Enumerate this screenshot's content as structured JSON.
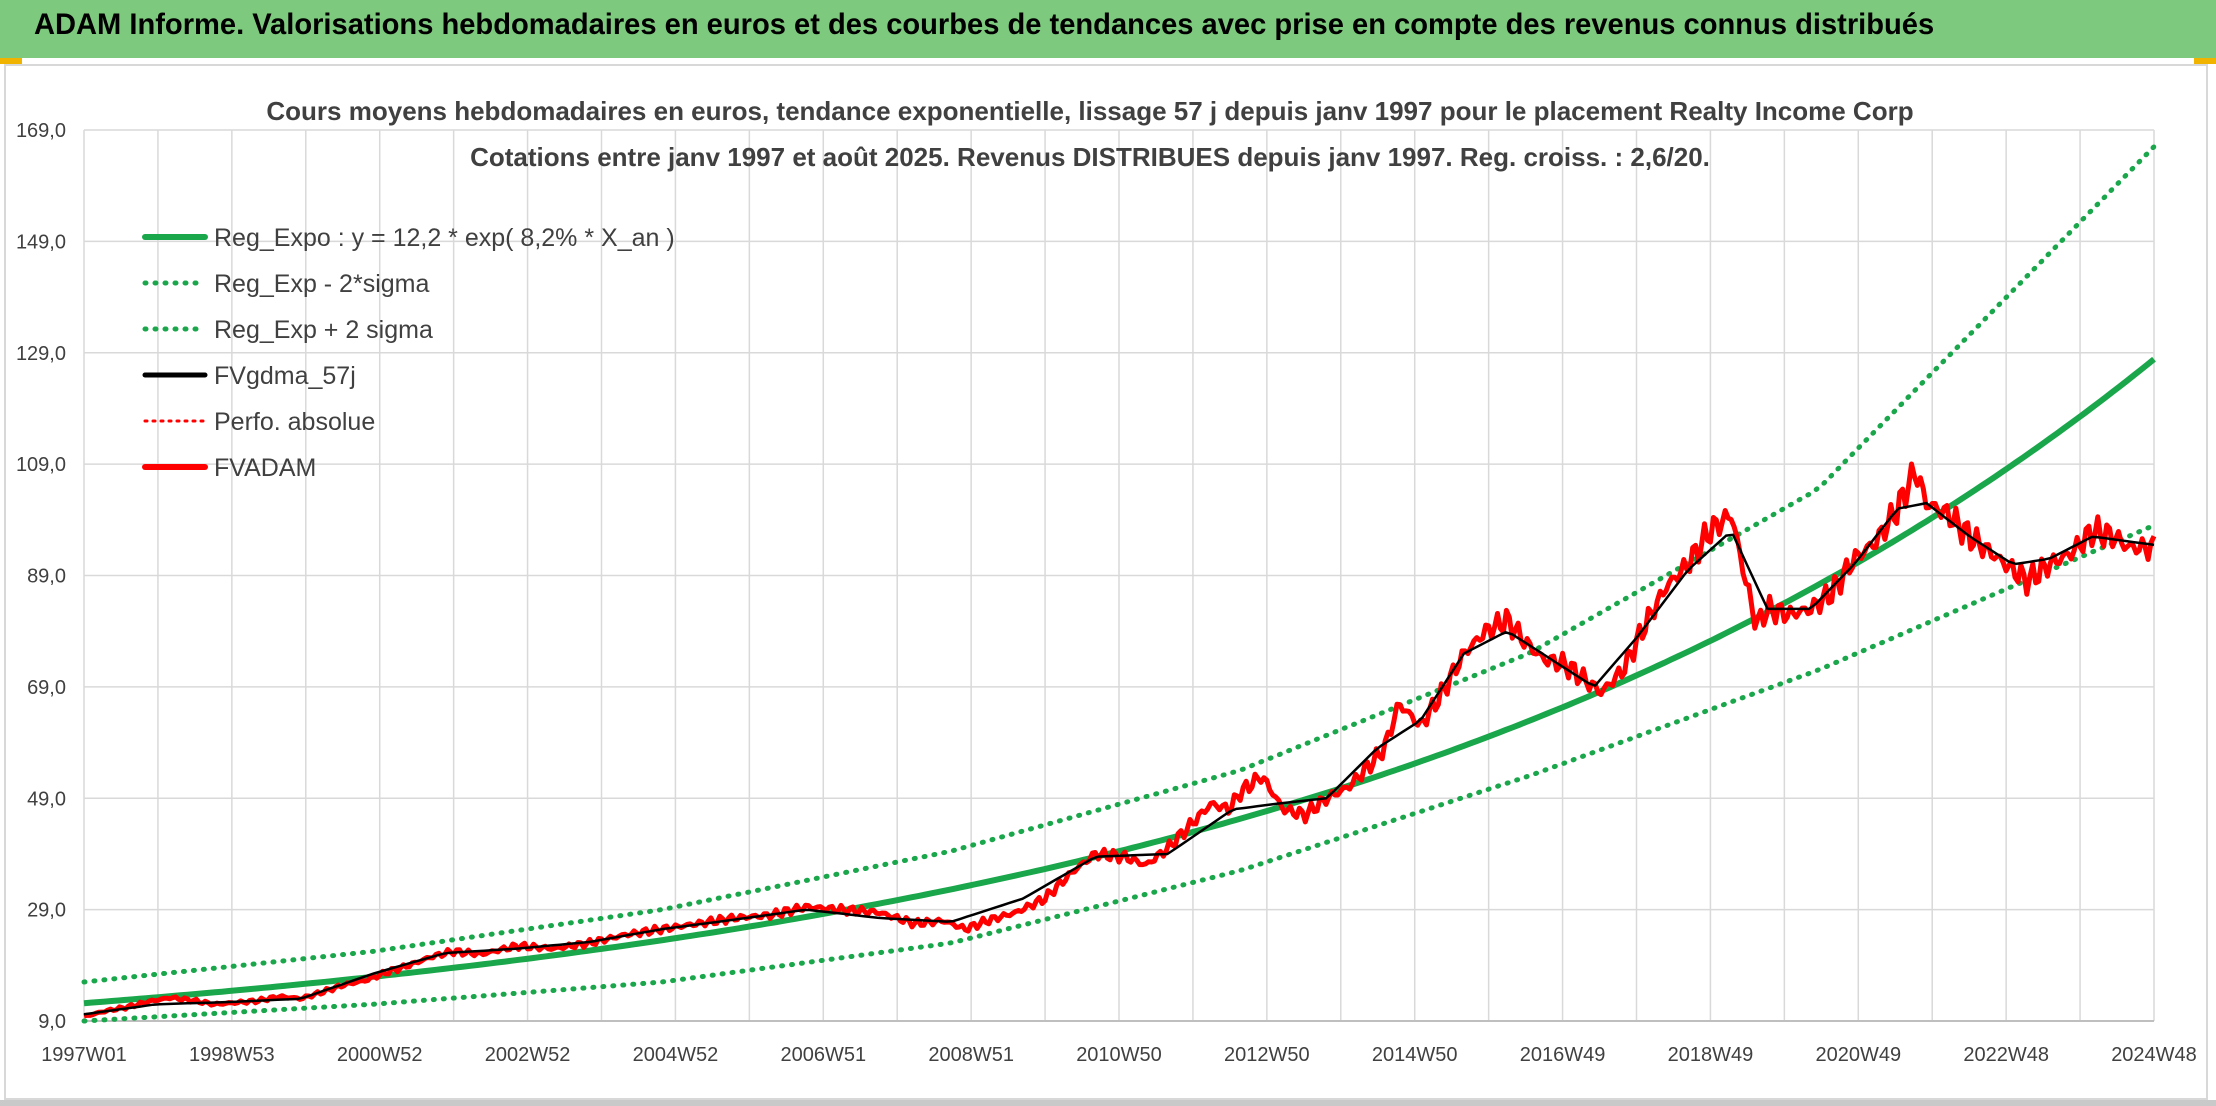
{
  "banner": {
    "title": "ADAM Informe. Valorisations hebdomadaires en euros et des courbes de tendances avec prise en compte des revenus connus distribués"
  },
  "colors": {
    "banner": "#7dc97d",
    "reg": "#1aa64b",
    "smooth": "#000000",
    "perf": "#ff0000",
    "fvadam": "#ff0000",
    "grid": "#d9d9d9"
  },
  "chart_data": {
    "type": "line",
    "title": "Cours moyens hebdomadaires en euros, tendance exponentielle, lissage 57 j depuis janv 1997 pour le placement Realty Income Corp",
    "subtitle": "Cotations entre janv 1997 et août 2025. Revenus DISTRIBUES depuis janv 1997. Reg. croiss. : 2,6/20.",
    "ylim": [
      9,
      169
    ],
    "y_ticks": [
      "169,0",
      "149,0",
      "129,0",
      "109,0",
      "89,0",
      "69,0",
      "49,0",
      "29,0",
      "9,0"
    ],
    "x_ticks": [
      "1997W01",
      "1998W53",
      "2000W52",
      "2002W52",
      "2004W52",
      "2006W51",
      "2008W51",
      "2010W50",
      "2012W50",
      "2014W50",
      "2016W49",
      "2018W49",
      "2020W49",
      "2022W48",
      "2024W48"
    ],
    "x_range": [
      1997.0,
      2025.65
    ],
    "grid": true,
    "legend_position": "top-left",
    "legend": [
      "Reg_Expo : y = 12,2 * exp( 8,2% *  X_an )",
      "Reg_Exp - 2*sigma",
      "Reg_Exp + 2 sigma",
      "FVgdma_57j",
      "Perfo. absolue",
      "FVADAM"
    ],
    "regression": {
      "a": 12.2,
      "rate": 0.082,
      "x0": 1997.0
    },
    "band_points": {
      "x": [
        1997.0,
        2001.0,
        2005.0,
        2009.0,
        2013.0,
        2017.0,
        2021.0,
        2025.65
      ],
      "upper": [
        16.0,
        21.5,
        29.0,
        39.5,
        54.0,
        75.0,
        104.5,
        166.0
      ],
      "lower": [
        9.0,
        12.0,
        16.0,
        23.0,
        36.0,
        53.0,
        72.0,
        98.0
      ]
    },
    "series": [
      {
        "name": "FVADAM",
        "x": [
          1997.0,
          1997.3,
          1997.6,
          1997.9,
          1998.2,
          1998.5,
          1998.8,
          1999.1,
          1999.4,
          1999.7,
          2000.0,
          2000.3,
          2000.6,
          2000.9,
          2001.2,
          2001.5,
          2001.8,
          2002.1,
          2002.5,
          2003.0,
          2003.5,
          2004.0,
          2004.5,
          2005.0,
          2005.5,
          2006.0,
          2006.5,
          2007.0,
          2007.5,
          2008.0,
          2008.5,
          2008.9,
          2009.2,
          2009.5,
          2009.9,
          2010.3,
          2010.7,
          2011.0,
          2011.4,
          2011.7,
          2012.0,
          2012.3,
          2012.6,
          2012.85,
          2013.0,
          2013.3,
          2013.6,
          2013.9,
          2014.2,
          2014.5,
          2014.8,
          2015.0,
          2015.2,
          2015.5,
          2015.8,
          2016.1,
          2016.4,
          2016.7,
          2016.95,
          2017.2,
          2017.5,
          2017.8,
          2018.0,
          2018.3,
          2018.6,
          2018.9,
          2019.2,
          2019.5,
          2019.8,
          2020.0,
          2020.15,
          2020.3,
          2020.6,
          2020.9,
          2021.2,
          2021.5,
          2021.8,
          2022.1,
          2022.35,
          2022.5,
          2022.8,
          2023.1,
          2023.4,
          2023.7,
          2023.9,
          2024.2,
          2024.5,
          2024.8,
          2025.1,
          2025.3,
          2025.65
        ],
        "values": [
          9.8,
          10.8,
          11.5,
          12.5,
          13.2,
          12.7,
          12.0,
          12.3,
          12.6,
          13.4,
          13.0,
          14.2,
          15.5,
          16.3,
          17.8,
          19.0,
          20.5,
          21.5,
          21.0,
          22.5,
          22.0,
          23.0,
          24.5,
          25.5,
          26.5,
          27.5,
          28.0,
          29.5,
          29.0,
          28.5,
          26.5,
          27.0,
          25.5,
          27.0,
          28.5,
          31.0,
          36.0,
          39.0,
          38.5,
          37.0,
          40.0,
          44.0,
          48.0,
          47.0,
          50.0,
          53.0,
          47.0,
          46.0,
          49.0,
          51.0,
          55.0,
          58.0,
          66.0,
          62.0,
          68.0,
          75.0,
          79.0,
          81.0,
          77.0,
          74.0,
          73.0,
          70.0,
          68.0,
          72.0,
          80.0,
          87.0,
          91.0,
          97.0,
          100.0,
          88.0,
          80.0,
          83.0,
          82.0,
          83.0,
          86.0,
          92.0,
          95.0,
          101.0,
          108.0,
          102.0,
          100.0,
          96.0,
          93.0,
          90.0,
          88.0,
          91.0,
          93.0,
          97.0,
          96.0,
          94.0,
          94.0
        ]
      },
      {
        "name": "FVgdma_57j",
        "x": [
          1997.0,
          1998.0,
          1999.0,
          2000.0,
          2001.0,
          2002.0,
          2003.0,
          2004.0,
          2005.0,
          2006.0,
          2007.0,
          2008.0,
          2009.0,
          2010.0,
          2011.0,
          2012.0,
          2012.9,
          2013.5,
          2014.2,
          2014.9,
          2015.5,
          2016.1,
          2016.7,
          2017.3,
          2017.9,
          2018.5,
          2019.2,
          2019.8,
          2020.3,
          2020.9,
          2021.5,
          2022.1,
          2022.5,
          2023.1,
          2023.7,
          2024.2,
          2024.8,
          2025.65
        ],
        "values": [
          10.2,
          12.0,
          12.4,
          13.0,
          17.5,
          21.2,
          22.0,
          23.2,
          25.5,
          27.2,
          29.0,
          27.5,
          26.8,
          31.0,
          38.5,
          39.0,
          47.0,
          48.0,
          49.0,
          58.0,
          63.0,
          75.0,
          79.0,
          74.0,
          69.0,
          78.0,
          90.0,
          97.0,
          83.0,
          83.0,
          91.0,
          101.0,
          102.0,
          96.0,
          91.0,
          92.0,
          96.0,
          94.5
        ]
      }
    ]
  }
}
